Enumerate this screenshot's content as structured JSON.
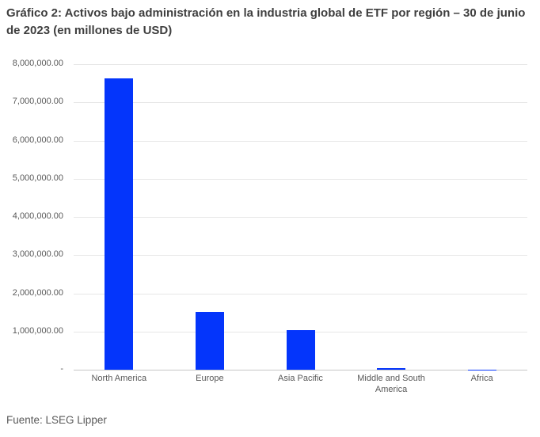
{
  "header": {
    "title": "Gráfico 2: Activos bajo administración en la industria global de ETF por región – 30 de junio de 2023 (en millones de USD)"
  },
  "source_note": "Fuente: LSEG Lipper",
  "colors": {
    "bar": "#0435fb",
    "title_text": "#3f3f3f",
    "axis_text": "#595959",
    "gridline": "#e7e7e7",
    "axis_line": "#c6c6c6",
    "background": "#ffffff"
  },
  "chart_data": {
    "type": "bar",
    "title": "Gráfico 2: Activos bajo administración en la industria global de ETF por región – 30 de junio de 2023 (en millones de USD)",
    "categories": [
      "North America",
      "Europe",
      "Asia Pacific",
      "Middle and South America",
      "Africa"
    ],
    "values": [
      7620000,
      1520000,
      1045000,
      45000,
      7000
    ],
    "xlabel": "",
    "ylabel": "",
    "ylim": [
      0,
      8000000
    ],
    "ytick_step": 1000000,
    "ytick_labels_top_to_bottom": [
      "8,000,000.00",
      "7,000,000.00",
      "6,000,000.00",
      "5,000,000.00",
      "4,000,000.00",
      "3,000,000.00",
      "2,000,000.00",
      "1,000,000.00",
      "-"
    ],
    "grid": true,
    "legend": false,
    "bar_color": "#0435fb",
    "source": "Fuente: LSEG Lipper"
  }
}
